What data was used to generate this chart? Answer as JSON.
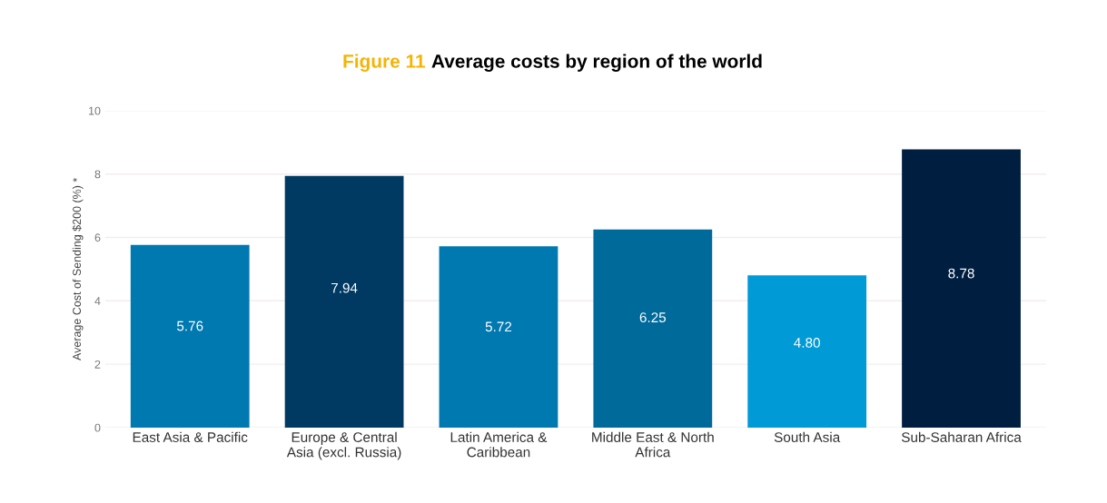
{
  "chart_data": {
    "type": "bar",
    "title": "Figure 11 Average costs by region of the world",
    "ylabel": "Average Cost of Sending $200 (%) *",
    "categories": [
      "East Asia & Pacific",
      "Europe & Central\nAsia (excl. Russia)",
      "Latin America &\nCaribbean",
      "Middle East & North\nAfrica",
      "South Asia",
      "Sub-Saharan Africa"
    ],
    "values": [
      5.76,
      7.94,
      5.72,
      6.25,
      4.8,
      8.78
    ],
    "value_labels": [
      "5.76",
      "7.94",
      "5.72",
      "6.25",
      "4.80",
      "8.78"
    ],
    "colors": [
      "#0079b1",
      "#003a63",
      "#0079b1",
      "#006a9a",
      "#009bd6",
      "#001f40"
    ],
    "ylim": [
      0,
      10
    ],
    "yticks": [
      0,
      2,
      4,
      6,
      8,
      10
    ],
    "grid": "y"
  }
}
